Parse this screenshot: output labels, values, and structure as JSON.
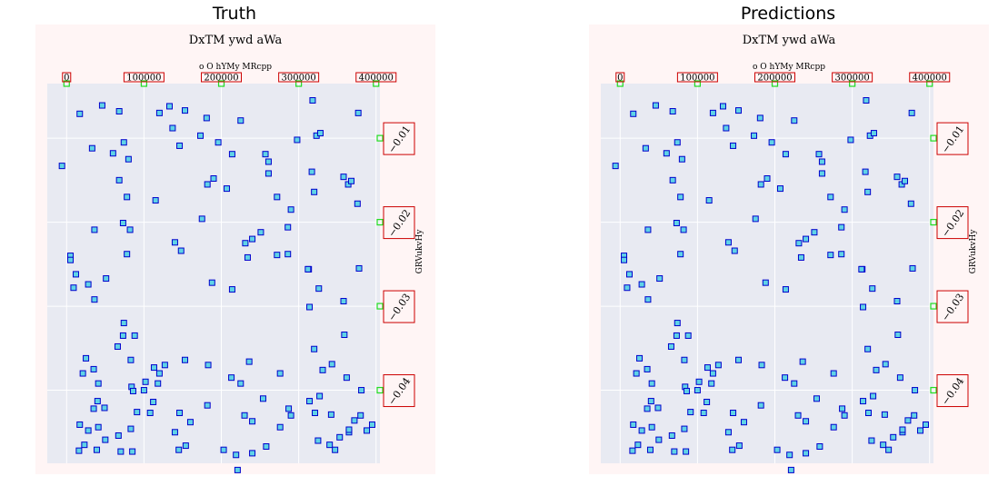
{
  "panels": [
    {
      "title": "Truth"
    },
    {
      "title": "Predictions"
    }
  ],
  "chart_data": [
    {
      "type": "scatter",
      "title": "DxTM ywd aWa",
      "xlabel": "o O hYMy MRcpp",
      "ylabel": "GRVukvHy",
      "x_ticks": [
        "0",
        "100000",
        "200000",
        "300000",
        "400000"
      ],
      "y_ticks": [
        "−0.01",
        "−0.02",
        "−0.03",
        "−0.04"
      ],
      "xlim": [
        -25000,
        405000
      ],
      "ylim": [
        -0.0487,
        -0.0035
      ],
      "colors": {
        "marker_fill": "#5fd3e6",
        "marker_edge": "#0000cc",
        "plot_bg": "#e8eaf2",
        "figure_bg": "#fff5f5",
        "tick_box": "#cc0000",
        "tick_mark": "#22dd22"
      },
      "points": [
        [
          -6000,
          -0.0133
        ],
        [
          17000,
          -0.0071
        ],
        [
          33000,
          -0.0112
        ],
        [
          46000,
          -0.0061
        ],
        [
          60000,
          -0.0118
        ],
        [
          68000,
          -0.0068
        ],
        [
          80000,
          -0.0125
        ],
        [
          120000,
          -0.007
        ],
        [
          133000,
          -0.0062
        ],
        [
          137000,
          -0.0088
        ],
        [
          146000,
          -0.0109
        ],
        [
          153000,
          -0.0067
        ],
        [
          173000,
          -0.0097
        ],
        [
          190000,
          -0.0148
        ],
        [
          225000,
          -0.0079
        ],
        [
          257000,
          -0.0119
        ],
        [
          261000,
          -0.0128
        ],
        [
          261000,
          -0.0142
        ],
        [
          298000,
          -0.0102
        ],
        [
          318000,
          -0.0055
        ],
        [
          317000,
          -0.014
        ],
        [
          323000,
          -0.0097
        ],
        [
          328000,
          -0.0094
        ],
        [
          377000,
          -0.007
        ],
        [
          358000,
          -0.0146
        ],
        [
          364000,
          -0.0155
        ],
        [
          368000,
          -0.0151
        ],
        [
          376000,
          -0.0178
        ],
        [
          320000,
          -0.0164
        ],
        [
          272000,
          -0.017
        ],
        [
          290000,
          -0.0185
        ],
        [
          240000,
          -0.022
        ],
        [
          214000,
          -0.0119
        ],
        [
          196000,
          -0.0105
        ],
        [
          181000,
          -0.0076
        ],
        [
          182000,
          -0.0155
        ],
        [
          207000,
          -0.016
        ],
        [
          175000,
          -0.0196
        ],
        [
          115000,
          -0.0174
        ],
        [
          78000,
          -0.017
        ],
        [
          74000,
          -0.0105
        ],
        [
          82000,
          -0.0209
        ],
        [
          68000,
          -0.015
        ],
        [
          73000,
          -0.0201
        ],
        [
          36000,
          -0.0209
        ],
        [
          140000,
          -0.0224
        ],
        [
          148000,
          -0.0234
        ],
        [
          231000,
          -0.0225
        ],
        [
          251000,
          -0.0212
        ],
        [
          286000,
          -0.0206
        ],
        [
          286000,
          -0.0238
        ],
        [
          272000,
          -0.0239
        ],
        [
          234000,
          -0.0242
        ],
        [
          313000,
          -0.0256
        ],
        [
          312000,
          -0.0256
        ],
        [
          378000,
          -0.0255
        ],
        [
          12000,
          -0.0262
        ],
        [
          5000,
          -0.024
        ],
        [
          5000,
          -0.0245
        ],
        [
          9000,
          -0.0278
        ],
        [
          78000,
          -0.0238
        ],
        [
          51000,
          -0.0267
        ],
        [
          36000,
          -0.0292
        ],
        [
          28000,
          -0.0274
        ],
        [
          73000,
          -0.0335
        ],
        [
          88000,
          -0.0335
        ],
        [
          66000,
          -0.0348
        ],
        [
          74000,
          -0.032
        ],
        [
          83000,
          -0.0364
        ],
        [
          113000,
          -0.0373
        ],
        [
          153000,
          -0.0364
        ],
        [
          127000,
          -0.037
        ],
        [
          183000,
          -0.037
        ],
        [
          214000,
          -0.028
        ],
        [
          188000,
          -0.0272
        ],
        [
          225000,
          -0.0392
        ],
        [
          213000,
          -0.0385
        ],
        [
          326000,
          -0.0279
        ],
        [
          320000,
          -0.0351
        ],
        [
          314000,
          -0.0301
        ],
        [
          343000,
          -0.0369
        ],
        [
          359000,
          -0.0334
        ],
        [
          358000,
          -0.0294
        ],
        [
          331000,
          -0.0376
        ],
        [
          276000,
          -0.038
        ],
        [
          236000,
          -0.0366
        ],
        [
          327000,
          -0.0407
        ],
        [
          314000,
          -0.0413
        ],
        [
          342000,
          -0.0429
        ],
        [
          365000,
          -0.045
        ],
        [
          372000,
          -0.0436
        ],
        [
          380000,
          -0.043
        ],
        [
          321000,
          -0.0427
        ],
        [
          290000,
          -0.043
        ],
        [
          254000,
          -0.041
        ],
        [
          276000,
          -0.0444
        ],
        [
          230000,
          -0.043
        ],
        [
          240000,
          -0.0437
        ],
        [
          182000,
          -0.0418
        ],
        [
          160000,
          -0.0438
        ],
        [
          140000,
          -0.045
        ],
        [
          146000,
          -0.0427
        ],
        [
          108000,
          -0.0427
        ],
        [
          112000,
          -0.0414
        ],
        [
          40000,
          -0.0413
        ],
        [
          35000,
          -0.0422
        ],
        [
          49000,
          -0.0421
        ],
        [
          35000,
          -0.0375
        ],
        [
          25000,
          -0.0362
        ],
        [
          21000,
          -0.038
        ],
        [
          41000,
          -0.0392
        ],
        [
          84000,
          -0.0396
        ],
        [
          86000,
          -0.0401
        ],
        [
          91000,
          -0.0426
        ],
        [
          100000,
          -0.04
        ],
        [
          102000,
          -0.039
        ],
        [
          118000,
          -0.0392
        ],
        [
          120000,
          -0.038
        ],
        [
          145000,
          -0.0471
        ],
        [
          154000,
          -0.0466
        ],
        [
          203000,
          -0.0471
        ],
        [
          219000,
          -0.0477
        ],
        [
          325000,
          -0.046
        ],
        [
          340000,
          -0.0465
        ],
        [
          347000,
          -0.0471
        ],
        [
          353000,
          -0.0456
        ],
        [
          365000,
          -0.0447
        ],
        [
          388000,
          -0.0448
        ],
        [
          395000,
          -0.0441
        ],
        [
          362000,
          -0.0385
        ],
        [
          381000,
          -0.04
        ],
        [
          287000,
          -0.0422
        ],
        [
          258000,
          -0.0467
        ],
        [
          240000,
          -0.0475
        ],
        [
          221000,
          -0.0495
        ],
        [
          67000,
          -0.0454
        ],
        [
          50000,
          -0.0459
        ],
        [
          28000,
          -0.0448
        ],
        [
          39000,
          -0.0471
        ],
        [
          16000,
          -0.0472
        ],
        [
          23000,
          -0.0465
        ],
        [
          70000,
          -0.0473
        ],
        [
          85000,
          -0.0473
        ],
        [
          17000,
          -0.0441
        ],
        [
          41000,
          -0.0444
        ],
        [
          83000,
          -0.0446
        ]
      ]
    },
    {
      "type": "scatter",
      "title": "DxTM ywd aWa",
      "xlabel": "o O hYMy MRcpp",
      "ylabel": "GRVukvHy",
      "x_ticks": [
        "0",
        "100000",
        "200000",
        "300000",
        "400000"
      ],
      "y_ticks": [
        "−0.01",
        "−0.02",
        "−0.03",
        "−0.04"
      ],
      "xlim": [
        -25000,
        405000
      ],
      "ylim": [
        -0.0487,
        -0.0035
      ],
      "colors": {
        "marker_fill": "#5fd3e6",
        "marker_edge": "#0000cc",
        "plot_bg": "#e8eaf2",
        "figure_bg": "#fff5f5",
        "tick_box": "#cc0000",
        "tick_mark": "#22dd22"
      },
      "points": [
        [
          -6000,
          -0.0133
        ],
        [
          17000,
          -0.0071
        ],
        [
          33000,
          -0.0112
        ],
        [
          46000,
          -0.0061
        ],
        [
          60000,
          -0.0118
        ],
        [
          68000,
          -0.0068
        ],
        [
          80000,
          -0.0125
        ],
        [
          120000,
          -0.007
        ],
        [
          133000,
          -0.0062
        ],
        [
          137000,
          -0.0088
        ],
        [
          146000,
          -0.0109
        ],
        [
          153000,
          -0.0067
        ],
        [
          173000,
          -0.0097
        ],
        [
          190000,
          -0.0148
        ],
        [
          225000,
          -0.0079
        ],
        [
          257000,
          -0.0119
        ],
        [
          261000,
          -0.0128
        ],
        [
          261000,
          -0.0142
        ],
        [
          298000,
          -0.0102
        ],
        [
          318000,
          -0.0055
        ],
        [
          317000,
          -0.014
        ],
        [
          323000,
          -0.0097
        ],
        [
          328000,
          -0.0094
        ],
        [
          377000,
          -0.007
        ],
        [
          358000,
          -0.0146
        ],
        [
          364000,
          -0.0155
        ],
        [
          368000,
          -0.0151
        ],
        [
          376000,
          -0.0178
        ],
        [
          320000,
          -0.0164
        ],
        [
          272000,
          -0.017
        ],
        [
          290000,
          -0.0185
        ],
        [
          240000,
          -0.022
        ],
        [
          214000,
          -0.0119
        ],
        [
          196000,
          -0.0105
        ],
        [
          181000,
          -0.0076
        ],
        [
          182000,
          -0.0155
        ],
        [
          207000,
          -0.016
        ],
        [
          175000,
          -0.0196
        ],
        [
          115000,
          -0.0174
        ],
        [
          78000,
          -0.017
        ],
        [
          74000,
          -0.0105
        ],
        [
          82000,
          -0.0209
        ],
        [
          68000,
          -0.015
        ],
        [
          73000,
          -0.0201
        ],
        [
          36000,
          -0.0209
        ],
        [
          140000,
          -0.0224
        ],
        [
          148000,
          -0.0234
        ],
        [
          231000,
          -0.0225
        ],
        [
          251000,
          -0.0212
        ],
        [
          286000,
          -0.0206
        ],
        [
          286000,
          -0.0238
        ],
        [
          272000,
          -0.0239
        ],
        [
          234000,
          -0.0242
        ],
        [
          313000,
          -0.0256
        ],
        [
          312000,
          -0.0256
        ],
        [
          378000,
          -0.0255
        ],
        [
          12000,
          -0.0262
        ],
        [
          5000,
          -0.024
        ],
        [
          5000,
          -0.0245
        ],
        [
          9000,
          -0.0278
        ],
        [
          78000,
          -0.0238
        ],
        [
          51000,
          -0.0267
        ],
        [
          36000,
          -0.0292
        ],
        [
          28000,
          -0.0274
        ],
        [
          73000,
          -0.0335
        ],
        [
          88000,
          -0.0335
        ],
        [
          66000,
          -0.0348
        ],
        [
          74000,
          -0.032
        ],
        [
          83000,
          -0.0364
        ],
        [
          113000,
          -0.0373
        ],
        [
          153000,
          -0.0364
        ],
        [
          127000,
          -0.037
        ],
        [
          183000,
          -0.037
        ],
        [
          214000,
          -0.028
        ],
        [
          188000,
          -0.0272
        ],
        [
          225000,
          -0.0392
        ],
        [
          213000,
          -0.0385
        ],
        [
          326000,
          -0.0279
        ],
        [
          320000,
          -0.0351
        ],
        [
          314000,
          -0.0301
        ],
        [
          343000,
          -0.0369
        ],
        [
          359000,
          -0.0334
        ],
        [
          358000,
          -0.0294
        ],
        [
          331000,
          -0.0376
        ],
        [
          276000,
          -0.038
        ],
        [
          236000,
          -0.0366
        ],
        [
          327000,
          -0.0407
        ],
        [
          314000,
          -0.0413
        ],
        [
          342000,
          -0.0429
        ],
        [
          365000,
          -0.045
        ],
        [
          372000,
          -0.0436
        ],
        [
          380000,
          -0.043
        ],
        [
          321000,
          -0.0427
        ],
        [
          290000,
          -0.043
        ],
        [
          254000,
          -0.041
        ],
        [
          276000,
          -0.0444
        ],
        [
          230000,
          -0.043
        ],
        [
          240000,
          -0.0437
        ],
        [
          182000,
          -0.0418
        ],
        [
          160000,
          -0.0438
        ],
        [
          140000,
          -0.045
        ],
        [
          146000,
          -0.0427
        ],
        [
          108000,
          -0.0427
        ],
        [
          112000,
          -0.0414
        ],
        [
          40000,
          -0.0413
        ],
        [
          35000,
          -0.0422
        ],
        [
          49000,
          -0.0421
        ],
        [
          35000,
          -0.0375
        ],
        [
          25000,
          -0.0362
        ],
        [
          21000,
          -0.038
        ],
        [
          41000,
          -0.0392
        ],
        [
          84000,
          -0.0396
        ],
        [
          86000,
          -0.0401
        ],
        [
          91000,
          -0.0426
        ],
        [
          100000,
          -0.04
        ],
        [
          102000,
          -0.039
        ],
        [
          118000,
          -0.0392
        ],
        [
          120000,
          -0.038
        ],
        [
          145000,
          -0.0471
        ],
        [
          154000,
          -0.0466
        ],
        [
          203000,
          -0.0471
        ],
        [
          219000,
          -0.0477
        ],
        [
          325000,
          -0.046
        ],
        [
          340000,
          -0.0465
        ],
        [
          347000,
          -0.0471
        ],
        [
          353000,
          -0.0456
        ],
        [
          365000,
          -0.0447
        ],
        [
          388000,
          -0.0448
        ],
        [
          395000,
          -0.0441
        ],
        [
          362000,
          -0.0385
        ],
        [
          381000,
          -0.04
        ],
        [
          287000,
          -0.0422
        ],
        [
          258000,
          -0.0467
        ],
        [
          240000,
          -0.0475
        ],
        [
          221000,
          -0.0495
        ],
        [
          67000,
          -0.0454
        ],
        [
          50000,
          -0.0459
        ],
        [
          28000,
          -0.0448
        ],
        [
          39000,
          -0.0471
        ],
        [
          16000,
          -0.0472
        ],
        [
          23000,
          -0.0465
        ],
        [
          70000,
          -0.0473
        ],
        [
          85000,
          -0.0473
        ],
        [
          17000,
          -0.0441
        ],
        [
          41000,
          -0.0444
        ],
        [
          83000,
          -0.0446
        ]
      ]
    }
  ]
}
